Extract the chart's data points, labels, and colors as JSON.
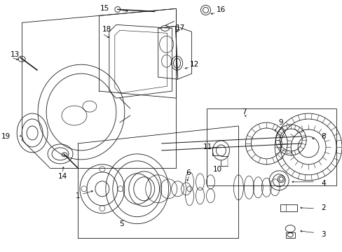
{
  "bg_color": "#ffffff",
  "line_color": "#1a1a1a",
  "fig_width": 4.89,
  "fig_height": 3.6,
  "dpi": 100,
  "font_size": 7.5,
  "lw": 0.6
}
